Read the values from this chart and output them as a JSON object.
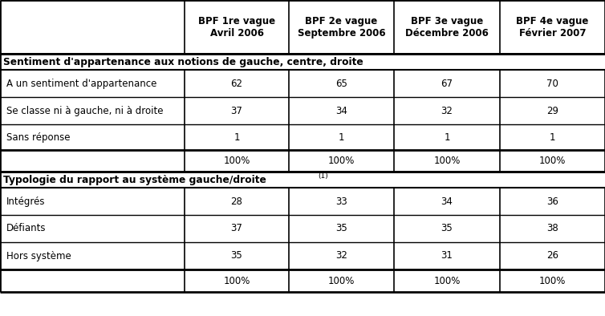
{
  "col_headers": [
    "BPF 1re vague\nAvril 2006",
    "BPF 2e vague\nSeptembre 2006",
    "BPF 3e vague\nDécembre 2006",
    "BPF 4e vague\nFévrier 2007"
  ],
  "section1_title": "Sentiment d'appartenance aux notions de gauche, centre, droite",
  "section1_rows": [
    [
      "A un sentiment d'appartenance",
      "62",
      "65",
      "67",
      "70"
    ],
    [
      "Se classe ni à gauche, ni à droite",
      "37",
      "34",
      "32",
      "29"
    ],
    [
      "Sans réponse",
      "1",
      "1",
      "1",
      "1"
    ],
    [
      "",
      "100%",
      "100%",
      "100%",
      "100%"
    ]
  ],
  "section2_title": "Typologie du rapport au système gauche/droite",
  "section2_title_sup": "(1)",
  "section2_rows": [
    [
      "Intégrés",
      "28",
      "33",
      "34",
      "36"
    ],
    [
      "Défiants",
      "37",
      "35",
      "35",
      "38"
    ],
    [
      "Hors système",
      "35",
      "32",
      "31",
      "26"
    ],
    [
      "",
      "100%",
      "100%",
      "100%",
      "100%"
    ]
  ],
  "bg_color": "#ffffff",
  "text_color": "#000000",
  "font_size_header": 8.5,
  "font_size_body": 8.5,
  "font_size_section": 8.8
}
